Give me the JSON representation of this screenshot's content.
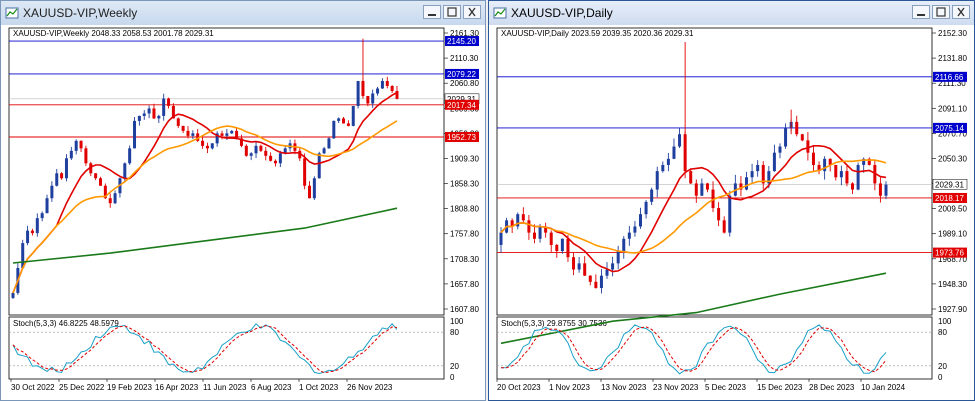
{
  "colors": {
    "bull": "#1f3f9f",
    "bear": "#e00000",
    "ma_fast": "#e00000",
    "ma_mid": "#ff9900",
    "ma_slow": "#1a7a1a",
    "level_blue": "#0000cc",
    "level_red": "#e00000"
  },
  "windows": [
    {
      "title": "XAUUSD-VIP,Weekly",
      "header": "XAUUSD-VIP,Weekly  2048.33 2058.53 2001.78 2029.31",
      "stoch_label": "Stoch(5,3,3) 46.8225 48.5979",
      "y_ticks": [
        "2161.30",
        "2110.30",
        "2060.80",
        "2009.80",
        "1959.30",
        "1909.30",
        "1858.30",
        "1808.80",
        "1757.80",
        "1708.30",
        "1657.80",
        "1607.80"
      ],
      "levels": [
        {
          "value": "2145.20",
          "color": "blue"
        },
        {
          "value": "2079.22",
          "color": "blue"
        },
        {
          "value": "2029.31",
          "color": "current"
        },
        {
          "value": "2017.34",
          "color": "red"
        },
        {
          "value": "1952.73",
          "color": "red"
        }
      ],
      "stoch_ticks": [
        "100",
        "80",
        "20",
        "0"
      ],
      "x_labels": [
        "30 Oct 2022",
        "25 Dec 2022",
        "19 Feb 2023",
        "16 Apr 2023",
        "11 Jun 2023",
        "6 Aug 2023",
        "1 Oct 2023",
        "26 Nov 2023"
      ]
    },
    {
      "title": "XAUUSD-VIP,Daily",
      "header": "XAUUSD-VIP,Daily  2023.59 2039.35 2020.36 2029.31",
      "stoch_label": "Stoch(5,3,3) 29.8755 30.7536",
      "y_ticks": [
        "2152.30",
        "2131.80",
        "2111.30",
        "2091.10",
        "2070.70",
        "2050.30",
        "2029.80",
        "2009.50",
        "1989.10",
        "1968.70",
        "1948.30",
        "1927.90"
      ],
      "levels": [
        {
          "value": "2116.66",
          "color": "blue"
        },
        {
          "value": "2075.14",
          "color": "blue"
        },
        {
          "value": "2029.31",
          "color": "current"
        },
        {
          "value": "2018.17",
          "color": "red"
        },
        {
          "value": "1973.76",
          "color": "red"
        }
      ],
      "stoch_ticks": [
        "100",
        "80",
        "20",
        "0"
      ],
      "x_labels": [
        "20 Oct 2023",
        "1 Nov 2023",
        "13 Nov 2023",
        "23 Nov 2023",
        "5 Dec 2023",
        "15 Dec 2023",
        "28 Dec 2023",
        "10 Jan 2024"
      ]
    }
  ]
}
